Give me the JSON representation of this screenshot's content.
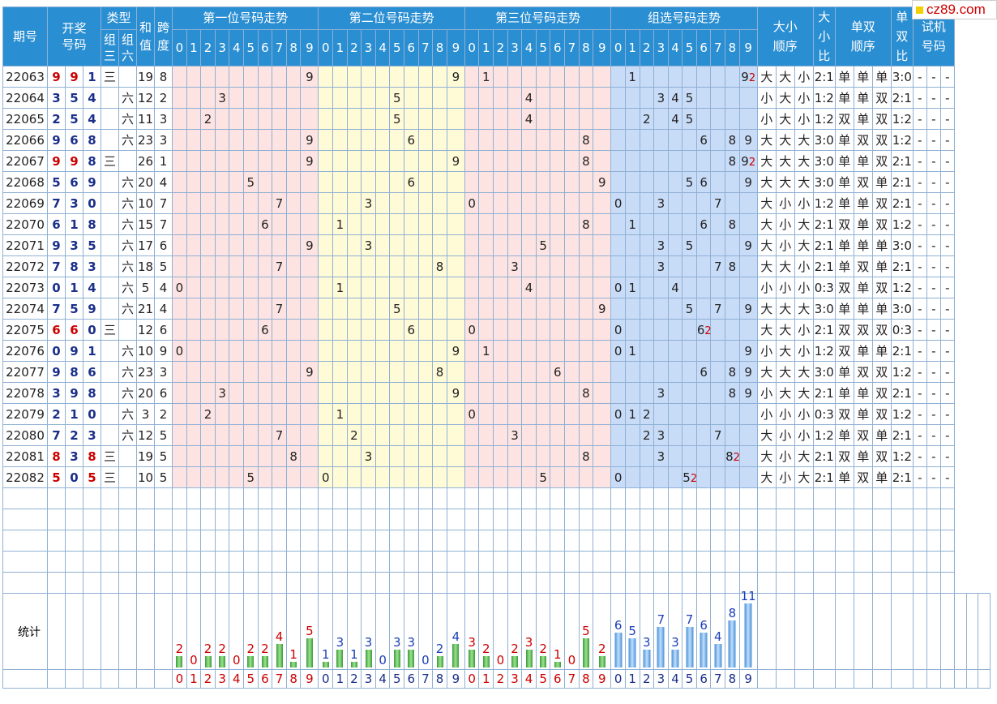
{
  "logo": {
    "text": "cz89.com"
  },
  "headers": {
    "qihao": "期号",
    "kaijiang": "开奖号码",
    "leixing": "类型",
    "zusan": "组三",
    "zuliu": "组六",
    "hezhi": "和值",
    "kuadu": "跨度",
    "pos1": "第一位号码走势",
    "pos2": "第二位号码走势",
    "pos3": "第三位号码走势",
    "zuxuan": "组选号码走势",
    "daxiao_order": "大小顺序",
    "daxiao_ratio": "大小比",
    "danshuang_order": "单双顺序",
    "danshuang_ratio": "单双比",
    "shiji": "试机号码"
  },
  "digits": [
    "0",
    "1",
    "2",
    "3",
    "4",
    "5",
    "6",
    "7",
    "8",
    "9"
  ],
  "rows": [
    {
      "qh": "22063",
      "n": [
        9,
        9,
        1
      ],
      "type": "三",
      "sum": "19",
      "span": "8",
      "p": [
        9,
        9,
        1
      ],
      "zx": [
        [
          1,
          ""
        ],
        [
          9,
          "2"
        ]
      ],
      "dx": [
        "大",
        "大",
        "小"
      ],
      "dxr": "2:1",
      "ds": [
        "单",
        "单",
        "单"
      ],
      "dsr": "3:0",
      "sj": [
        "-",
        "-",
        "-"
      ]
    },
    {
      "qh": "22064",
      "n": [
        3,
        5,
        4
      ],
      "type": "六",
      "sum": "12",
      "span": "2",
      "p": [
        3,
        5,
        4
      ],
      "zx": [
        [
          3,
          ""
        ],
        [
          4,
          ""
        ],
        [
          5,
          ""
        ]
      ],
      "dx": [
        "小",
        "大",
        "小"
      ],
      "dxr": "1:2",
      "ds": [
        "单",
        "单",
        "双"
      ],
      "dsr": "2:1",
      "sj": [
        "-",
        "-",
        "-"
      ]
    },
    {
      "qh": "22065",
      "n": [
        2,
        5,
        4
      ],
      "type": "六",
      "sum": "11",
      "span": "3",
      "p": [
        2,
        5,
        4
      ],
      "zx": [
        [
          2,
          ""
        ],
        [
          4,
          ""
        ],
        [
          5,
          ""
        ]
      ],
      "dx": [
        "小",
        "大",
        "小"
      ],
      "dxr": "1:2",
      "ds": [
        "双",
        "单",
        "双"
      ],
      "dsr": "1:2",
      "sj": [
        "-",
        "-",
        "-"
      ]
    },
    {
      "qh": "22066",
      "n": [
        9,
        6,
        8
      ],
      "type": "六",
      "sum": "23",
      "span": "3",
      "p": [
        9,
        6,
        8
      ],
      "zx": [
        [
          6,
          ""
        ],
        [
          8,
          ""
        ],
        [
          9,
          ""
        ]
      ],
      "dx": [
        "大",
        "大",
        "大"
      ],
      "dxr": "3:0",
      "ds": [
        "单",
        "双",
        "双"
      ],
      "dsr": "1:2",
      "sj": [
        "-",
        "-",
        "-"
      ]
    },
    {
      "qh": "22067",
      "n": [
        9,
        9,
        8
      ],
      "type": "三",
      "sum": "26",
      "span": "1",
      "p": [
        9,
        9,
        8
      ],
      "zx": [
        [
          8,
          ""
        ],
        [
          9,
          "2"
        ]
      ],
      "dx": [
        "大",
        "大",
        "大"
      ],
      "dxr": "3:0",
      "ds": [
        "单",
        "单",
        "双"
      ],
      "dsr": "2:1",
      "sj": [
        "-",
        "-",
        "-"
      ]
    },
    {
      "qh": "22068",
      "n": [
        5,
        6,
        9
      ],
      "type": "六",
      "sum": "20",
      "span": "4",
      "p": [
        5,
        6,
        9
      ],
      "zx": [
        [
          5,
          ""
        ],
        [
          6,
          ""
        ],
        [
          9,
          ""
        ]
      ],
      "dx": [
        "大",
        "大",
        "大"
      ],
      "dxr": "3:0",
      "ds": [
        "单",
        "双",
        "单"
      ],
      "dsr": "2:1",
      "sj": [
        "-",
        "-",
        "-"
      ]
    },
    {
      "qh": "22069",
      "n": [
        7,
        3,
        0
      ],
      "type": "六",
      "sum": "10",
      "span": "7",
      "p": [
        7,
        3,
        0
      ],
      "zx": [
        [
          0,
          ""
        ],
        [
          3,
          ""
        ],
        [
          7,
          ""
        ]
      ],
      "dx": [
        "大",
        "小",
        "小"
      ],
      "dxr": "1:2",
      "ds": [
        "单",
        "单",
        "双"
      ],
      "dsr": "2:1",
      "sj": [
        "-",
        "-",
        "-"
      ]
    },
    {
      "qh": "22070",
      "n": [
        6,
        1,
        8
      ],
      "type": "六",
      "sum": "15",
      "span": "7",
      "p": [
        6,
        1,
        8
      ],
      "zx": [
        [
          1,
          ""
        ],
        [
          6,
          ""
        ],
        [
          8,
          ""
        ]
      ],
      "dx": [
        "大",
        "小",
        "大"
      ],
      "dxr": "2:1",
      "ds": [
        "双",
        "单",
        "双"
      ],
      "dsr": "1:2",
      "sj": [
        "-",
        "-",
        "-"
      ]
    },
    {
      "qh": "22071",
      "n": [
        9,
        3,
        5
      ],
      "type": "六",
      "sum": "17",
      "span": "6",
      "p": [
        9,
        3,
        5
      ],
      "zx": [
        [
          3,
          ""
        ],
        [
          5,
          ""
        ],
        [
          9,
          ""
        ]
      ],
      "dx": [
        "大",
        "小",
        "大"
      ],
      "dxr": "2:1",
      "ds": [
        "单",
        "单",
        "单"
      ],
      "dsr": "3:0",
      "sj": [
        "-",
        "-",
        "-"
      ]
    },
    {
      "qh": "22072",
      "n": [
        7,
        8,
        3
      ],
      "type": "六",
      "sum": "18",
      "span": "5",
      "p": [
        7,
        8,
        3
      ],
      "zx": [
        [
          3,
          ""
        ],
        [
          7,
          ""
        ],
        [
          8,
          ""
        ]
      ],
      "dx": [
        "大",
        "大",
        "小"
      ],
      "dxr": "2:1",
      "ds": [
        "单",
        "双",
        "单"
      ],
      "dsr": "2:1",
      "sj": [
        "-",
        "-",
        "-"
      ]
    },
    {
      "qh": "22073",
      "n": [
        0,
        1,
        4
      ],
      "type": "六",
      "sum": "5",
      "span": "4",
      "p": [
        0,
        1,
        4
      ],
      "zx": [
        [
          0,
          ""
        ],
        [
          1,
          ""
        ],
        [
          4,
          ""
        ]
      ],
      "dx": [
        "小",
        "小",
        "小"
      ],
      "dxr": "0:3",
      "ds": [
        "双",
        "单",
        "双"
      ],
      "dsr": "1:2",
      "sj": [
        "-",
        "-",
        "-"
      ]
    },
    {
      "qh": "22074",
      "n": [
        7,
        5,
        9
      ],
      "type": "六",
      "sum": "21",
      "span": "4",
      "p": [
        7,
        5,
        9
      ],
      "zx": [
        [
          5,
          ""
        ],
        [
          7,
          ""
        ],
        [
          9,
          ""
        ]
      ],
      "dx": [
        "大",
        "大",
        "大"
      ],
      "dxr": "3:0",
      "ds": [
        "单",
        "单",
        "单"
      ],
      "dsr": "3:0",
      "sj": [
        "-",
        "-",
        "-"
      ]
    },
    {
      "qh": "22075",
      "n": [
        6,
        6,
        0
      ],
      "type": "三",
      "sum": "12",
      "span": "6",
      "p": [
        6,
        6,
        0
      ],
      "zx": [
        [
          0,
          ""
        ],
        [
          6,
          "2"
        ]
      ],
      "dx": [
        "大",
        "大",
        "小"
      ],
      "dxr": "2:1",
      "ds": [
        "双",
        "双",
        "双"
      ],
      "dsr": "0:3",
      "sj": [
        "-",
        "-",
        "-"
      ]
    },
    {
      "qh": "22076",
      "n": [
        0,
        9,
        1
      ],
      "type": "六",
      "sum": "10",
      "span": "9",
      "p": [
        0,
        9,
        1
      ],
      "zx": [
        [
          0,
          ""
        ],
        [
          1,
          ""
        ],
        [
          9,
          ""
        ]
      ],
      "dx": [
        "小",
        "大",
        "小"
      ],
      "dxr": "1:2",
      "ds": [
        "双",
        "单",
        "单"
      ],
      "dsr": "2:1",
      "sj": [
        "-",
        "-",
        "-"
      ]
    },
    {
      "qh": "22077",
      "n": [
        9,
        8,
        6
      ],
      "type": "六",
      "sum": "23",
      "span": "3",
      "p": [
        9,
        8,
        6
      ],
      "zx": [
        [
          6,
          ""
        ],
        [
          8,
          ""
        ],
        [
          9,
          ""
        ]
      ],
      "dx": [
        "大",
        "大",
        "大"
      ],
      "dxr": "3:0",
      "ds": [
        "单",
        "双",
        "双"
      ],
      "dsr": "1:2",
      "sj": [
        "-",
        "-",
        "-"
      ]
    },
    {
      "qh": "22078",
      "n": [
        3,
        9,
        8
      ],
      "type": "六",
      "sum": "20",
      "span": "6",
      "p": [
        3,
        9,
        8
      ],
      "zx": [
        [
          3,
          ""
        ],
        [
          8,
          ""
        ],
        [
          9,
          ""
        ]
      ],
      "dx": [
        "小",
        "大",
        "大"
      ],
      "dxr": "2:1",
      "ds": [
        "单",
        "单",
        "双"
      ],
      "dsr": "2:1",
      "sj": [
        "-",
        "-",
        "-"
      ]
    },
    {
      "qh": "22079",
      "n": [
        2,
        1,
        0
      ],
      "type": "六",
      "sum": "3",
      "span": "2",
      "p": [
        2,
        1,
        0
      ],
      "zx": [
        [
          0,
          ""
        ],
        [
          1,
          ""
        ],
        [
          2,
          ""
        ]
      ],
      "dx": [
        "小",
        "小",
        "小"
      ],
      "dxr": "0:3",
      "ds": [
        "双",
        "单",
        "双"
      ],
      "dsr": "1:2",
      "sj": [
        "-",
        "-",
        "-"
      ]
    },
    {
      "qh": "22080",
      "n": [
        7,
        2,
        3
      ],
      "type": "六",
      "sum": "12",
      "span": "5",
      "p": [
        7,
        2,
        3
      ],
      "zx": [
        [
          2,
          ""
        ],
        [
          3,
          ""
        ],
        [
          7,
          ""
        ]
      ],
      "dx": [
        "大",
        "小",
        "小"
      ],
      "dxr": "1:2",
      "ds": [
        "单",
        "双",
        "单"
      ],
      "dsr": "2:1",
      "sj": [
        "-",
        "-",
        "-"
      ]
    },
    {
      "qh": "22081",
      "n": [
        8,
        3,
        8
      ],
      "type": "三",
      "sum": "19",
      "span": "5",
      "p": [
        8,
        3,
        8
      ],
      "zx": [
        [
          3,
          ""
        ],
        [
          8,
          "2"
        ]
      ],
      "dx": [
        "大",
        "小",
        "大"
      ],
      "dxr": "2:1",
      "ds": [
        "双",
        "单",
        "双"
      ],
      "dsr": "1:2",
      "sj": [
        "-",
        "-",
        "-"
      ]
    },
    {
      "qh": "22082",
      "n": [
        5,
        0,
        5
      ],
      "type": "三",
      "sum": "10",
      "span": "5",
      "p": [
        5,
        0,
        5
      ],
      "zx": [
        [
          0,
          ""
        ],
        [
          5,
          "2"
        ]
      ],
      "dx": [
        "大",
        "小",
        "大"
      ],
      "dxr": "2:1",
      "ds": [
        "单",
        "双",
        "单"
      ],
      "dsr": "2:1",
      "sj": [
        "-",
        "-",
        "-"
      ]
    }
  ],
  "stats": {
    "label": "统计",
    "pos1": [
      2,
      0,
      2,
      2,
      0,
      2,
      2,
      4,
      1,
      5
    ],
    "pos2": [
      1,
      3,
      1,
      3,
      0,
      3,
      3,
      0,
      2,
      4
    ],
    "pos3": [
      3,
      2,
      0,
      2,
      3,
      2,
      1,
      0,
      5,
      2
    ],
    "zuxuan": [
      6,
      5,
      3,
      7,
      3,
      7,
      6,
      4,
      8,
      11
    ]
  },
  "colors": {
    "header": "#2a8ed2",
    "pink": "#fde4e2",
    "yellow": "#fffbd7",
    "blue": "#c8dcf8",
    "red": "#cc0000",
    "navy": "#1a2f8a",
    "bar_green": "#3c9a3c",
    "bar_blue": "#4b8fd6"
  }
}
